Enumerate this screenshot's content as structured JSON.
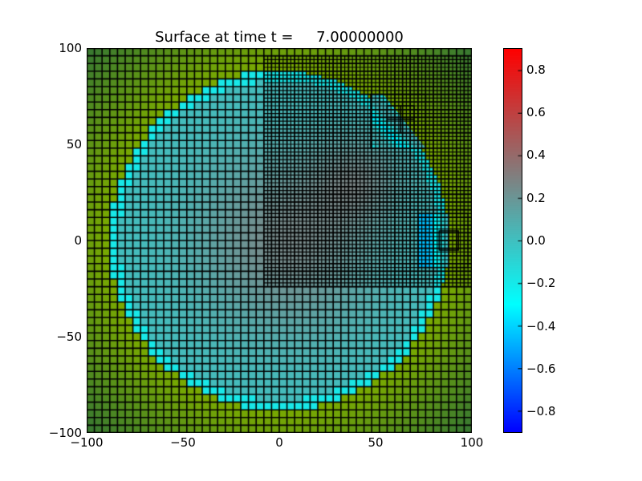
{
  "chart_data": {
    "type": "heatmap",
    "title": "Surface at time t =     7.00000000",
    "xlabel": "",
    "ylabel": "",
    "xlim": [
      -100,
      100
    ],
    "ylim": [
      -100,
      100
    ],
    "xticks": [
      -100,
      -50,
      0,
      50,
      100
    ],
    "yticks": [
      -100,
      -50,
      0,
      50,
      100
    ],
    "xtick_labels": [
      "−100",
      "−50",
      "0",
      "50",
      "100"
    ],
    "ytick_labels": [
      "−100",
      "−50",
      "0",
      "50",
      "100"
    ],
    "colorbar": {
      "range": [
        -0.9,
        0.9
      ],
      "ticks": [
        0.8,
        0.6,
        0.4,
        0.2,
        0.0,
        -0.2,
        -0.4,
        -0.6,
        -0.8
      ],
      "tick_labels": [
        "0.8",
        "0.6",
        "0.4",
        "0.2",
        "0.0",
        "−0.2",
        "−0.4",
        "−0.6",
        "−0.8"
      ],
      "colors": [
        "#0000ff",
        "#0080ff",
        "#00ffff",
        "#40c0c0",
        "#808080",
        "#c04040",
        "#ff0000"
      ]
    },
    "land_colors": [
      "#7aaa00",
      "#3a7a30"
    ],
    "grids": [
      {
        "level": 1,
        "x": [
          -100,
          100
        ],
        "y": [
          -100,
          100
        ],
        "cell": 4
      },
      {
        "level": 2,
        "x": [
          -8,
          100
        ],
        "y": [
          -24,
          36
        ],
        "cell": 2
      },
      {
        "level": 2,
        "x": [
          -8,
          100
        ],
        "y": [
          36,
          96
        ],
        "cell": 2
      },
      {
        "level": 3,
        "x": [
          47.5,
          76
        ],
        "y": [
          48,
          76
        ],
        "cell": 0.5
      },
      {
        "level": 3,
        "x": [
          72,
          98
        ],
        "y": [
          -14,
          14
        ],
        "cell": 0.5
      },
      {
        "level": 4,
        "x": [
          56,
          70
        ],
        "y": [
          56,
          70
        ],
        "cell": 0.1
      },
      {
        "level": 4,
        "x": [
          83,
          93
        ],
        "y": [
          -5,
          5
        ],
        "cell": 0.1
      }
    ],
    "shoreline_radius": 88
  }
}
